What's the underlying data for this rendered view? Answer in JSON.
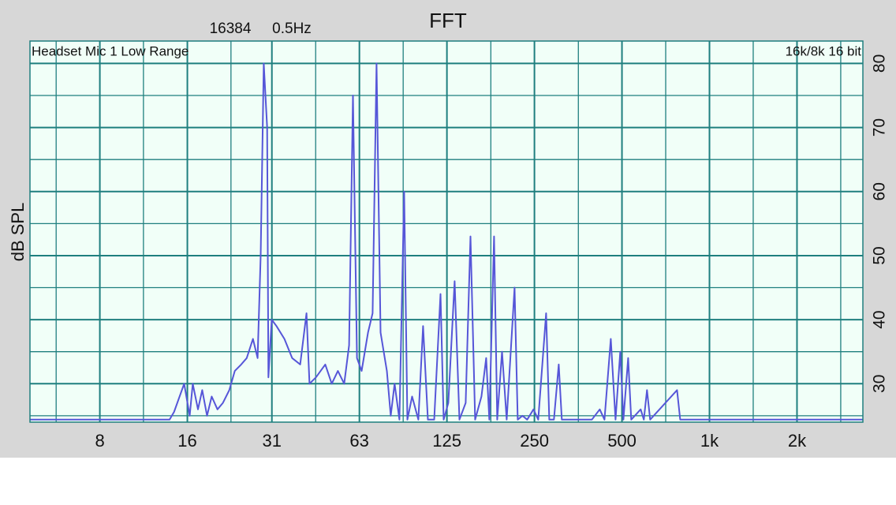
{
  "chart_data": {
    "type": "line",
    "title": "FFT",
    "annotations": [
      "16384",
      "0.5Hz",
      "Headset Mic 1 Low Range",
      "16k/8k 16 bit"
    ],
    "ylabel": "dB SPL",
    "log_x": true,
    "grid": true,
    "xlim": [
      4.6,
      3370
    ],
    "ylim": [
      24,
      83.5
    ],
    "xticks": [
      8,
      16,
      {
        "value": 31.25,
        "label": "31"
      },
      {
        "value": 62.5,
        "label": "63"
      },
      125,
      250,
      500,
      {
        "value": 1000,
        "label": "1k"
      },
      {
        "value": 2000,
        "label": "2k"
      }
    ],
    "x_grid": [
      5.66,
      11.3,
      22.6,
      44.2,
      88.4,
      177,
      354,
      707,
      1414,
      2828
    ],
    "yticks": [
      30,
      40,
      50,
      60,
      70,
      80
    ],
    "y_grid": [
      25,
      35,
      45,
      55,
      65,
      75
    ],
    "x": [
      4.6,
      13.9,
      14.4,
      15.6,
      16.3,
      16.7,
      17.4,
      18.0,
      18.7,
      19.4,
      20.3,
      21.2,
      22.3,
      23.3,
      24.5,
      25.6,
      26.9,
      27.9,
      28.6,
      29.3,
      30.1,
      30.4,
      31.2,
      32.4,
      34.5,
      36.7,
      39.1,
      41.1,
      42.1,
      44.3,
      47.7,
      50.2,
      52.7,
      55.4,
      57.6,
      59.4,
      61.3,
      63.6,
      66.9,
      69.4,
      71.6,
      73.9,
      77.7,
      80.1,
      82.6,
      85.8,
      89.1,
      91.4,
      94.9,
      99.7,
      103.5,
      107.5,
      113.0,
      118.8,
      121.8,
      126.4,
      132.9,
      138.0,
      145.0,
      150.6,
      156.3,
      164.3,
      170.6,
      174.9,
      181.6,
      186.2,
      193.4,
      200.7,
      213.6,
      219.0,
      227.4,
      236.1,
      248.2,
      257.6,
      274.2,
      281.1,
      291.8,
      303.0,
      310.6,
      393.9,
      419.4,
      435.3,
      457.6,
      475.1,
      493.2,
      505.7,
      525.0,
      538.2,
      580.1,
      594.7,
      609.7,
      625.0,
      773.4,
      792.9,
      3370
    ],
    "series": [
      {
        "color": "#5656d8",
        "values": [
          24.4,
          24.4,
          25.6,
          30,
          25,
          30,
          26,
          29,
          25,
          28,
          26,
          27,
          29,
          32,
          33,
          34,
          37,
          34,
          50,
          80,
          70,
          31,
          40,
          39,
          37,
          34,
          33,
          41,
          30,
          31,
          33,
          30,
          32,
          30,
          36,
          75,
          34,
          32,
          38,
          41,
          80,
          38,
          32,
          25,
          30,
          24.4,
          60,
          24.4,
          28,
          24.4,
          39,
          24.4,
          24.4,
          44,
          24.4,
          27,
          46,
          24.4,
          27,
          53,
          24.4,
          28,
          34,
          24.4,
          53,
          24.4,
          35,
          24.4,
          45,
          24.4,
          25,
          24.4,
          26,
          24.4,
          41,
          24.4,
          24.4,
          33,
          24.4,
          24.4,
          26,
          24.4,
          37,
          24.4,
          35,
          24.4,
          34,
          24.4,
          26,
          24.4,
          29,
          24.4,
          29,
          24.4,
          24.4
        ]
      }
    ]
  }
}
